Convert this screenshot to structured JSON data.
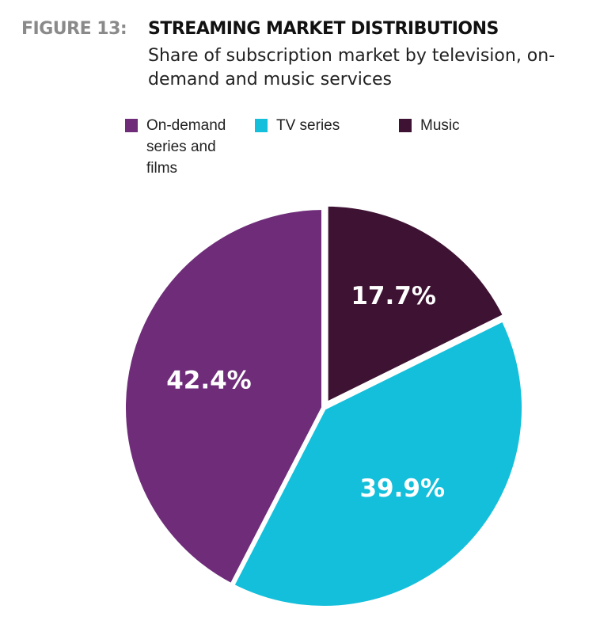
{
  "figure_label": "FIGURE 13:",
  "chart_data": {
    "type": "pie",
    "title": "STREAMING MARKET DISTRIBUTIONS",
    "subtitle": "Share of subscription market by television, on-demand and music services",
    "legend_placement": "top",
    "slices": [
      {
        "name": "Music",
        "value": 17.7,
        "label": "17.7%",
        "color": "#3e1233"
      },
      {
        "name": "TV series",
        "value": 39.9,
        "label": "39.9%",
        "color": "#13bfda"
      },
      {
        "name": "On-demand series and films",
        "value": 42.4,
        "label": "42.4%",
        "color": "#6e2c79"
      }
    ],
    "legend": [
      {
        "label": "On-demand series and films",
        "color": "#6e2c79"
      },
      {
        "label": "TV series",
        "color": "#13bfda"
      },
      {
        "label": "Music",
        "color": "#3e1233"
      }
    ]
  }
}
